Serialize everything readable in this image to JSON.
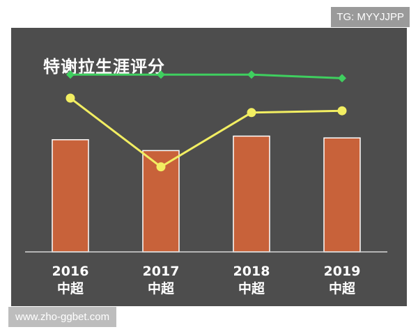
{
  "watermarks": {
    "top_right": "TG: MYYJJPP",
    "bottom_left": "www.zho-ggbet.com"
  },
  "colors": {
    "panel_bg": "#4d4d4d",
    "bar_fill": "#c8623a",
    "bar_border": "#ffffff",
    "green_line": "#3fcf5f",
    "yellow_line": "#f2ee62"
  },
  "chart_data": {
    "type": "bar",
    "title": "特谢拉生涯评分",
    "categories": [
      {
        "year": "2016",
        "league": "中超"
      },
      {
        "year": "2017",
        "league": "中超"
      },
      {
        "year": "2018",
        "league": "中超"
      },
      {
        "year": "2019",
        "league": "中超"
      }
    ],
    "ylim": [
      0,
      100
    ],
    "grid": false,
    "bars": [
      62,
      56,
      64,
      63
    ],
    "lines": [
      {
        "color": "green",
        "values": [
          98,
          98,
          98,
          96
        ]
      },
      {
        "color": "yellow",
        "values": [
          85,
          47,
          77,
          78
        ]
      }
    ]
  }
}
